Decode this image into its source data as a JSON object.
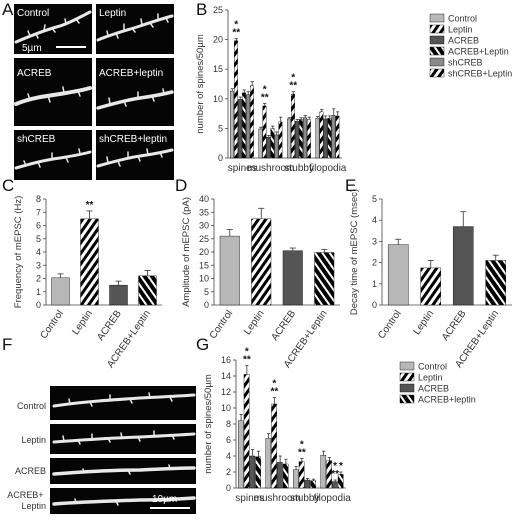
{
  "micrographs_A": [
    {
      "label": "Control"
    },
    {
      "label": "Leptin"
    },
    {
      "label": "ACREB"
    },
    {
      "label": "ACREB+leptin"
    },
    {
      "label": "shCREB"
    },
    {
      "label": "shCREB+leptin"
    }
  ],
  "scale_bar_A": "5µm",
  "micrographs_F": [
    {
      "label": "Control"
    },
    {
      "label": "Leptin"
    },
    {
      "label": "ACREB"
    },
    {
      "label": "ACREB+\nLeptin"
    }
  ],
  "scale_bar_F": "10µm",
  "colors": {
    "control": "#b8b8b8",
    "acreb": "#555555",
    "shcreb": "#8a8a8a",
    "stripe": "#000000"
  },
  "chart_data": [
    {
      "panel": "B",
      "type": "bar",
      "ylabel": "number of spines/50µm",
      "ylim": [
        0,
        25
      ],
      "yticks": [
        0,
        5,
        10,
        15,
        20,
        25
      ],
      "categories": [
        "spines",
        "mushroom",
        "stubby",
        "filopodia"
      ],
      "legend_position": "top-right",
      "series": [
        {
          "name": "Control",
          "style": "control",
          "values": [
            11.3,
            4.9,
            6.6,
            6.7
          ],
          "errors": [
            0.4,
            0.3,
            0.2,
            0.3
          ]
        },
        {
          "name": "Leptin",
          "style": "stripe-white",
          "values": [
            19.8,
            8.8,
            10.8,
            7.8
          ],
          "errors": [
            0.4,
            0.4,
            0.4,
            0.4
          ]
        },
        {
          "name": "ACREB",
          "style": "acreb",
          "values": [
            9.9,
            3.5,
            6.2,
            6.6
          ],
          "errors": [
            0.4,
            0.3,
            0.3,
            0.5
          ]
        },
        {
          "name": "ACREB+Leptin",
          "style": "stripe-black",
          "values": [
            11.0,
            5.0,
            6.5,
            6.7
          ],
          "errors": [
            0.5,
            0.4,
            0.3,
            0.4
          ]
        },
        {
          "name": "shCREB",
          "style": "shcreb",
          "values": [
            10.7,
            3.9,
            6.8,
            7.2
          ],
          "errors": [
            0.5,
            0.5,
            0.4,
            1.1
          ]
        },
        {
          "name": "shCREB+Leptin",
          "style": "stripe-white",
          "values": [
            12.2,
            6.1,
            6.5,
            7.1
          ],
          "errors": [
            0.7,
            0.8,
            0.4,
            0.7
          ]
        }
      ],
      "annotations": [
        {
          "category": 0,
          "series": 1,
          "text": "*\n**"
        },
        {
          "category": 1,
          "series": 1,
          "text": "*\n**"
        },
        {
          "category": 2,
          "series": 1,
          "text": "*\n**"
        }
      ]
    },
    {
      "panel": "C",
      "type": "bar",
      "ylabel": "Frequency of mEPSC (Hz)",
      "ylim": [
        0,
        8
      ],
      "yticks": [
        0,
        1,
        2,
        3,
        4,
        5,
        6,
        7,
        8
      ],
      "categories": [
        "Control",
        "Leptin",
        "ACREB",
        "ACREB+Leptin"
      ],
      "styles": [
        "control",
        "stripe-white",
        "acreb",
        "stripe-black"
      ],
      "values": [
        2.05,
        6.5,
        1.5,
        2.2
      ],
      "errors": [
        0.3,
        0.6,
        0.3,
        0.4
      ],
      "annotations": [
        {
          "index": 1,
          "text": "**"
        }
      ]
    },
    {
      "panel": "D",
      "type": "bar",
      "ylabel": "Amplitude of mEPSC (pA)",
      "ylim": [
        0,
        40
      ],
      "yticks": [
        0,
        5,
        10,
        15,
        20,
        25,
        30,
        35,
        40
      ],
      "categories": [
        "Control",
        "Leptin",
        "ACREB",
        "ACREB+Leptin"
      ],
      "styles": [
        "control",
        "stripe-white",
        "acreb",
        "stripe-black"
      ],
      "values": [
        26.0,
        32.5,
        20.5,
        19.8
      ],
      "errors": [
        2.5,
        4.0,
        1.0,
        1.2
      ]
    },
    {
      "panel": "E",
      "type": "bar",
      "ylabel": "Decay time of mEPSC (msec)",
      "ylim": [
        0,
        5
      ],
      "yticks": [
        0,
        1,
        2,
        3,
        4,
        5
      ],
      "categories": [
        "Control",
        "Leptin",
        "ACREB",
        "ACREB+Leptin"
      ],
      "styles": [
        "control",
        "stripe-white",
        "acreb",
        "stripe-black"
      ],
      "values": [
        2.85,
        1.75,
        3.7,
        2.1
      ],
      "errors": [
        0.25,
        0.35,
        0.7,
        0.25
      ]
    },
    {
      "panel": "G",
      "type": "bar",
      "ylabel": "number of spines/50µm",
      "ylim": [
        0,
        16
      ],
      "yticks": [
        0,
        2,
        4,
        6,
        8,
        10,
        12,
        14,
        16
      ],
      "categories": [
        "spines",
        "mushroom",
        "stubby",
        "filopodia"
      ],
      "legend_position": "top-right",
      "series": [
        {
          "name": "Control",
          "style": "control",
          "values": [
            8.4,
            6.2,
            2.3,
            4.1
          ],
          "errors": [
            0.8,
            0.6,
            0.4,
            0.5
          ]
        },
        {
          "name": "Leptin",
          "style": "stripe-white",
          "values": [
            14.2,
            10.5,
            3.3,
            3.4
          ],
          "errors": [
            1.1,
            0.8,
            0.4,
            0.4
          ]
        },
        {
          "name": "ACREB",
          "style": "acreb",
          "values": [
            4.0,
            3.2,
            1.0,
            0.8
          ],
          "errors": [
            0.8,
            0.8,
            0.2,
            0.2
          ]
        },
        {
          "name": "ACREB+leptin",
          "style": "stripe-black",
          "values": [
            3.9,
            3.0,
            0.9,
            1.7
          ],
          "errors": [
            0.7,
            0.6,
            0.2,
            0.3
          ]
        }
      ],
      "annotations": [
        {
          "category": 0,
          "series": 1,
          "text": "*\n**"
        },
        {
          "category": 1,
          "series": 1,
          "text": "*\n**"
        },
        {
          "category": 2,
          "series": 1,
          "text": "*\n**"
        },
        {
          "category": 3,
          "series": 2,
          "text": "*\n**"
        },
        {
          "category": 3,
          "series": 3,
          "text": "*"
        }
      ]
    }
  ]
}
